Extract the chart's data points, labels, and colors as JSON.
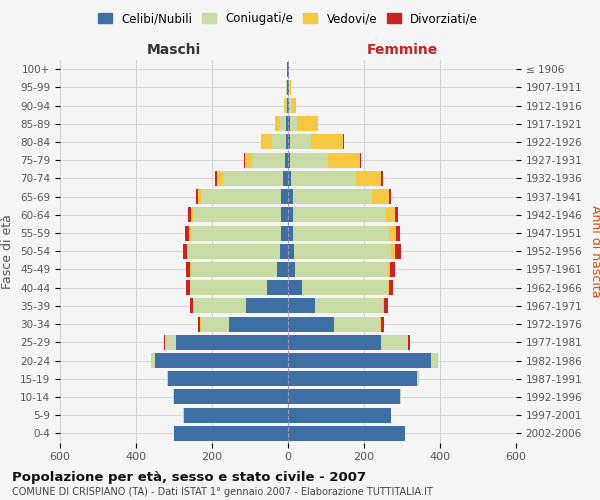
{
  "age_groups": [
    "100+",
    "95-99",
    "90-94",
    "85-89",
    "80-84",
    "75-79",
    "70-74",
    "65-69",
    "60-64",
    "55-59",
    "50-54",
    "45-49",
    "40-44",
    "35-39",
    "30-34",
    "25-29",
    "20-24",
    "15-19",
    "10-14",
    "5-9",
    "0-4"
  ],
  "birth_years": [
    "≤ 1906",
    "1907-1911",
    "1912-1916",
    "1917-1921",
    "1922-1926",
    "1927-1931",
    "1932-1936",
    "1937-1941",
    "1942-1946",
    "1947-1951",
    "1952-1956",
    "1957-1961",
    "1962-1966",
    "1967-1971",
    "1972-1976",
    "1977-1981",
    "1982-1986",
    "1987-1991",
    "1992-1996",
    "1997-2001",
    "2002-2006"
  ],
  "male_celibi": [
    2,
    2,
    3,
    5,
    5,
    8,
    12,
    18,
    18,
    18,
    20,
    28,
    55,
    110,
    155,
    295,
    350,
    315,
    300,
    275,
    300
  ],
  "male_coniugati": [
    1,
    2,
    5,
    15,
    38,
    88,
    160,
    210,
    232,
    238,
    242,
    228,
    202,
    140,
    75,
    28,
    10,
    4,
    2,
    1,
    1
  ],
  "male_vedovi": [
    0,
    1,
    3,
    14,
    28,
    18,
    16,
    8,
    5,
    4,
    3,
    2,
    1,
    1,
    1,
    1,
    0,
    0,
    0,
    0,
    0
  ],
  "male_divorziati": [
    0,
    0,
    0,
    0,
    0,
    2,
    5,
    5,
    8,
    12,
    12,
    10,
    10,
    8,
    5,
    2,
    1,
    0,
    0,
    0,
    0
  ],
  "female_nubili": [
    2,
    2,
    3,
    5,
    5,
    6,
    8,
    12,
    12,
    12,
    15,
    18,
    38,
    70,
    120,
    245,
    375,
    340,
    295,
    270,
    308
  ],
  "female_coniugate": [
    1,
    2,
    7,
    18,
    55,
    98,
    170,
    210,
    245,
    255,
    255,
    245,
    225,
    180,
    122,
    70,
    18,
    6,
    2,
    1,
    1
  ],
  "female_vedove": [
    0,
    3,
    12,
    55,
    85,
    85,
    68,
    45,
    25,
    16,
    12,
    6,
    4,
    3,
    2,
    2,
    1,
    0,
    0,
    0,
    0
  ],
  "female_divorziate": [
    0,
    0,
    0,
    0,
    2,
    2,
    5,
    5,
    8,
    12,
    15,
    12,
    10,
    10,
    8,
    3,
    1,
    0,
    0,
    0,
    0
  ],
  "color_celibi": "#3d6fa5",
  "color_coniugati": "#c8dba4",
  "color_vedovi": "#f5c842",
  "color_divorziati": "#cc2222",
  "title": "Popolazione per età, sesso e stato civile - 2007",
  "subtitle": "COMUNE DI CRISPIANO (TA) - Dati ISTAT 1° gennaio 2007 - Elaborazione TUTTITALIA.IT",
  "label_maschi": "Maschi",
  "label_femmine": "Femmine",
  "label_fasce": "Fasce di età",
  "label_anni": "Anni di nascita",
  "legend_labels": [
    "Celibi/Nubili",
    "Coniugati/e",
    "Vedovi/e",
    "Divorziati/e"
  ],
  "xlim": 600,
  "bg_color": "#f5f5f5",
  "grid_color": "#cccccc"
}
